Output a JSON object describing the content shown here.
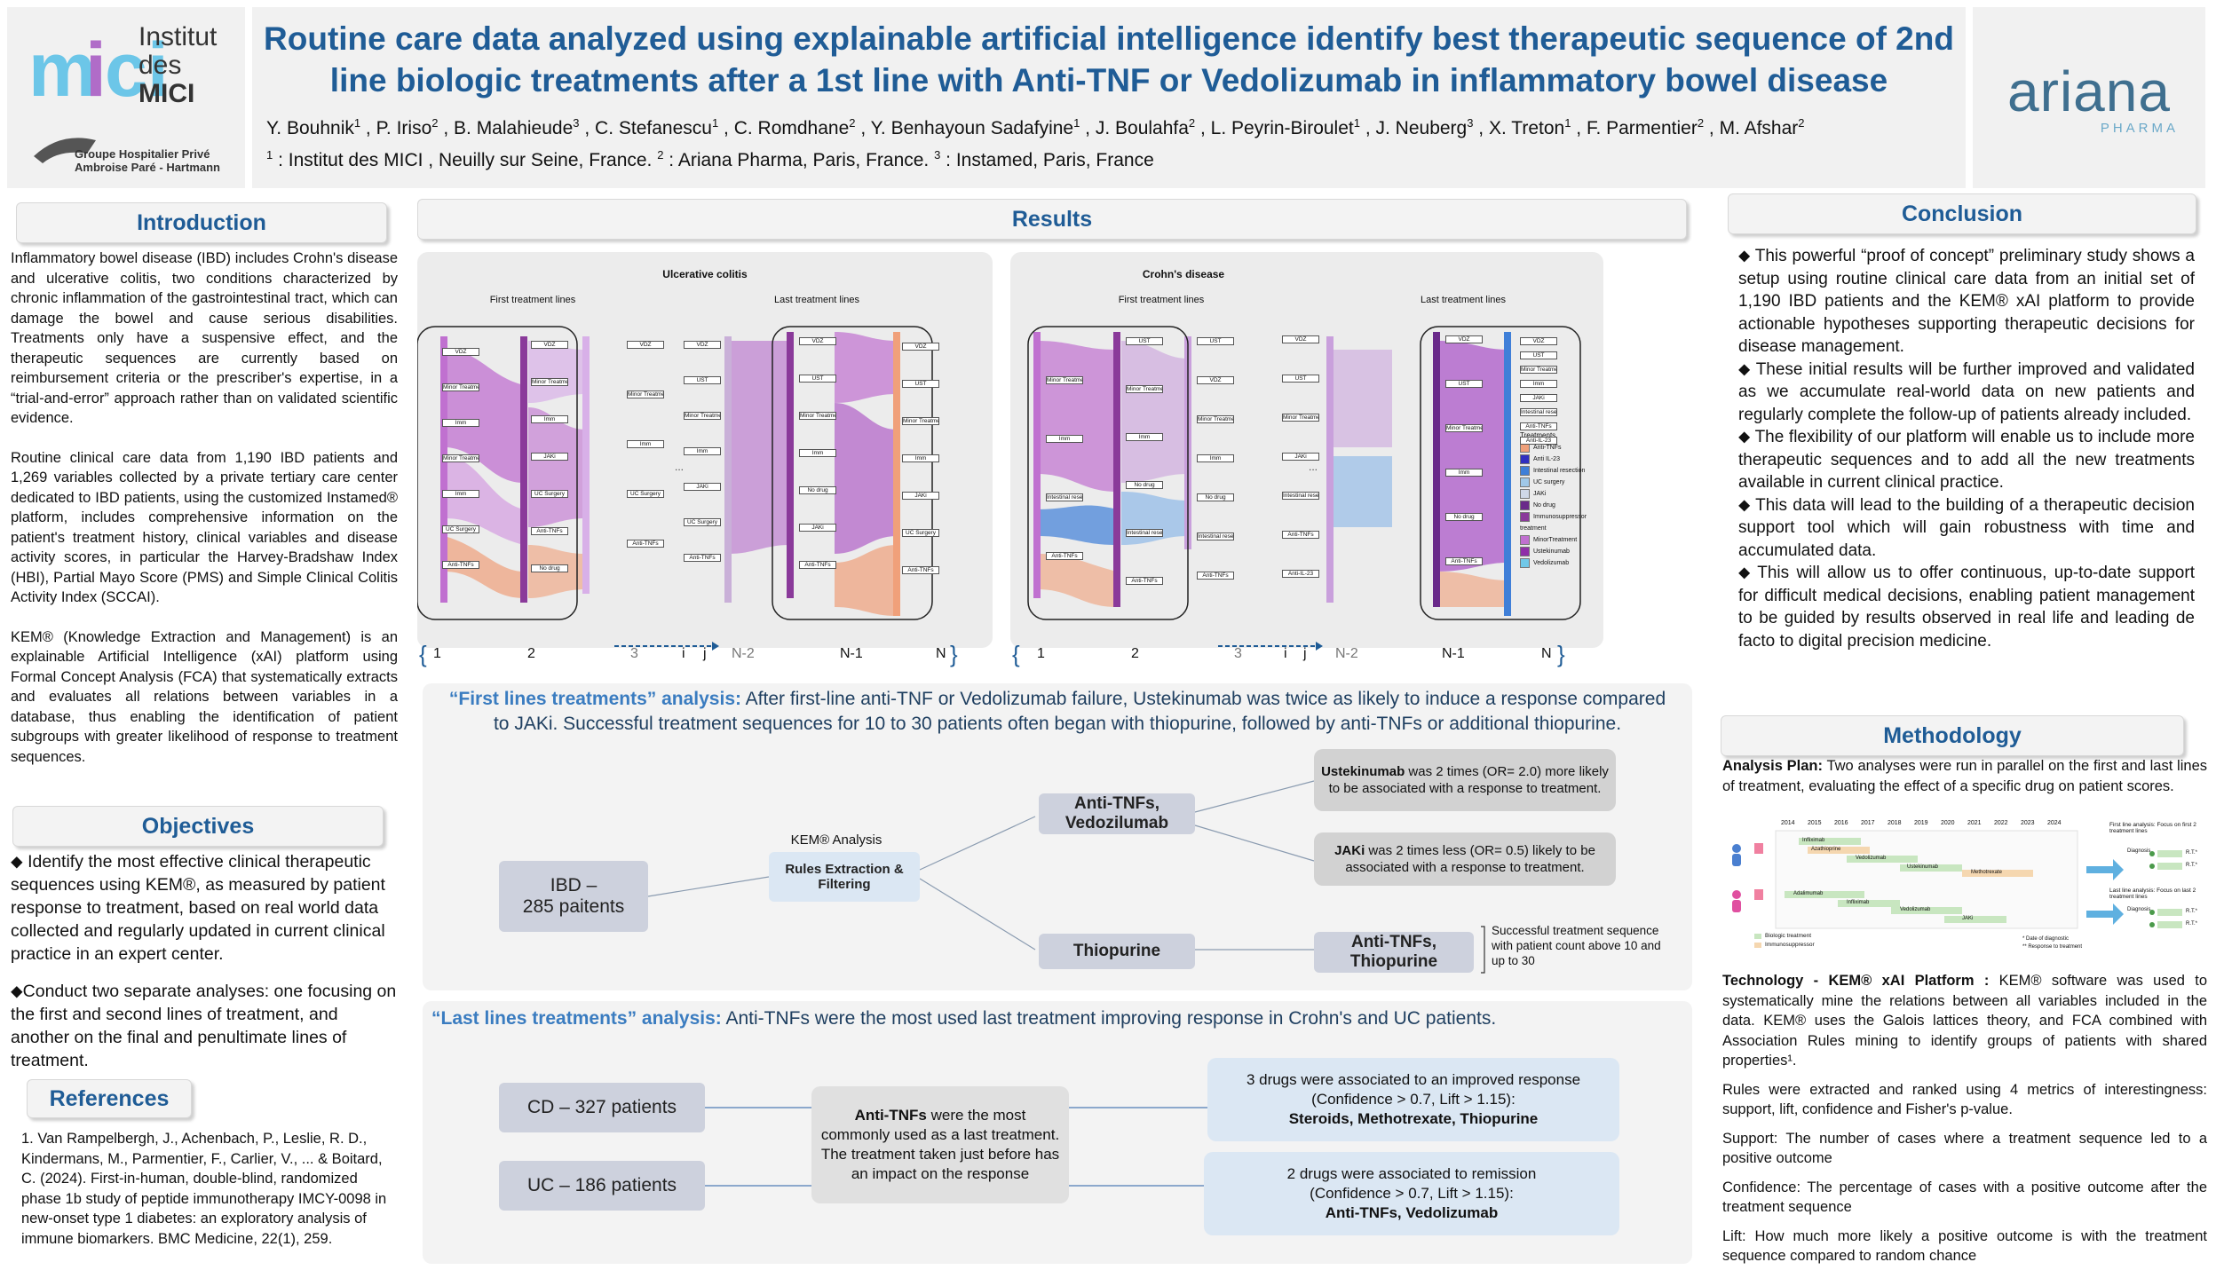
{
  "header": {
    "title_line1": "Routine care data analyzed using explainable artificial intelligence identify best therapeutic sequence of 2nd",
    "title_line2": "line biologic treatments after a 1st line with Anti-TNF or Vedolizumab in inflammatory bowel disease",
    "authors": [
      {
        "name": "Y. Bouhnik",
        "aff": "1"
      },
      {
        "name": "P. Iriso",
        "aff": "2"
      },
      {
        "name": "B. Malahieude",
        "aff": "3"
      },
      {
        "name": "C. Stefanescu",
        "aff": "1"
      },
      {
        "name": "C. Romdhane",
        "aff": "2"
      },
      {
        "name": "Y. Benhayoun Sadafyine",
        "aff": "1"
      },
      {
        "name": "J. Boulahfa",
        "aff": "2"
      },
      {
        "name": "L. Peyrin-Biroulet",
        "aff": "1"
      },
      {
        "name": "J. Neuberg",
        "aff": "3"
      },
      {
        "name": "X. Treton",
        "aff": "1"
      },
      {
        "name": "F. Parmentier",
        "aff": "2"
      },
      {
        "name": "M. Afshar",
        "aff": "2"
      }
    ],
    "affiliations": [
      {
        "num": "1",
        "text": ": Institut des MICI , Neuilly sur Seine, France."
      },
      {
        "num": "2",
        "text": ": Ariana Pharma, Paris, France."
      },
      {
        "num": "3",
        "text": ": Instamed, Paris, France"
      }
    ],
    "logo_left": {
      "line1": "Institut",
      "line2": "des",
      "line3": "MICI",
      "sub1": "Groupe Hospitalier Privé",
      "sub2": "Ambroise Paré - Hartmann"
    },
    "logo_right": {
      "name": "ariana",
      "sub": "PHARMA"
    }
  },
  "introduction": {
    "heading": "Introduction",
    "paragraphs": [
      "Inflammatory bowel disease (IBD) includes Crohn's disease and ulcerative colitis, two conditions characterized by chronic inflammation of the gastrointestinal tract, which can damage the bowel and cause serious disabilities. Treatments only have a suspensive effect, and the therapeutic sequences are currently based on reimbursement criteria or the prescriber's expertise, in a “trial-and-error” approach rather than on validated scientific evidence.",
      "Routine clinical care data from 1,190 IBD patients and 1,269 variables collected by a private tertiary care center dedicated to IBD patients, using the customized Instamed® platform, includes comprehensive information on the patient's treatment history, clinical variables and disease activity scores, in particular the Harvey-Bradshaw Index (HBI), Partial Mayo Score (PMS) and Simple Clinical Colitis Activity Index (SCCAI).",
      "KEM® (Knowledge Extraction and Management) is an explainable Artificial Intelligence (xAI) platform using Formal Concept Analysis (FCA) that systematically extracts and evaluates all relations between variables in a database, thus enabling the identification of patient subgroups with greater likelihood of response to treatment sequences."
    ]
  },
  "objectives": {
    "heading": "Objectives",
    "items": [
      "⬥ Identify the most effective clinical therapeutic sequences using KEM®, as measured by patient response to treatment, based on real world data collected and regularly updated in current clinical practice in an expert center.",
      "⬥Conduct two separate analyses: one focusing on the first and second lines of treatment, and another on the final and penultimate lines of treatment."
    ]
  },
  "references": {
    "heading": "References",
    "text": "1. Van Rampelbergh, J., Achenbach, P., Leslie, R. D., Kindermans, M., Parmentier, F., Carlier, V., ... & Boitard, C. (2024). First-in-human, double-blind, randomized phase 1b study of peptide immunotherapy IMCY-0098 in new-onset type 1 diabetes: an exploratory analysis of immune biomarkers. BMC Medicine, 22(1), 259."
  },
  "results": {
    "heading": "Results",
    "uc": {
      "title": "Ulcerative colitis",
      "first_label": "First treatment lines",
      "last_label": "Last treatment lines",
      "first_nodes": [
        "VDZ",
        "Minor Treatment",
        "Imm",
        "Minor Treatment",
        "Imm",
        "UC Surgery",
        "Anti-TNFs"
      ],
      "mid_nodes": [
        "VDZ",
        "Minor Treatment",
        "Imm",
        "JAKi",
        "UC Surgery",
        "Anti-TNFs",
        "No drug"
      ],
      "right_nodes": [
        "VDZ",
        "Minor Treatment",
        "Imm",
        "UC Surgery",
        "Anti-TNFs"
      ],
      "last_left_nodes": [
        "VDZ",
        "UST",
        "Minor Treatment",
        "Imm",
        "JAKi",
        "UC Surgery",
        "Anti-TNFs"
      ],
      "last_mid_nodes": [
        "VDZ",
        "UST",
        "Minor Treatment",
        "Imm",
        "No drug",
        "JAKi",
        "Anti-TNFs"
      ],
      "last_right_nodes": [
        "VDZ",
        "UST",
        "Minor Treatment",
        "Imm",
        "JAKi",
        "UC Surgery",
        "Anti-TNFs"
      ]
    },
    "cd": {
      "title": "Crohn's disease",
      "first_label": "First treatment lines",
      "last_label": "Last treatment lines",
      "first_nodes": [
        "Minor Treatment",
        "Imm",
        "Intestinal resection",
        "Anti-TNFs"
      ],
      "mid_nodes": [
        "UST",
        "Minor Treatment",
        "Imm",
        "No drug",
        "Intestinal resection",
        "Anti-TNFs"
      ],
      "right_nodes": [
        "UST",
        "VDZ",
        "Minor Treatment",
        "Imm",
        "No drug",
        "Intestinal resection",
        "Anti-TNFs"
      ],
      "last_left_nodes": [
        "VDZ",
        "UST",
        "Minor Treatment",
        "JAKi",
        "Intestinal resection",
        "Anti-TNFs",
        "Anti-IL-23"
      ],
      "last_mid_nodes": [
        "VDZ",
        "UST",
        "Minor Treatment",
        "Imm",
        "No drug",
        "Anti-TNFs"
      ],
      "last_right_nodes": [
        "VDZ",
        "UST",
        "Minor Treatment",
        "Imm",
        "JAKi",
        "Intestinal resection",
        "Anti-TNFs",
        "Anti-IL-23"
      ]
    },
    "axis_labels": [
      "1",
      "2",
      "3",
      "i",
      "j",
      "N-2",
      "N-1",
      "N"
    ],
    "dots": "...",
    "legend": {
      "title": "Treatments",
      "items": [
        {
          "label": "Anti-TNFs",
          "color": "#f0a07a"
        },
        {
          "label": "Anti IL-23",
          "color": "#2f2fc0"
        },
        {
          "label": "Intestinal resection",
          "color": "#3f7fd8"
        },
        {
          "label": "UC surgery",
          "color": "#a0c8e8"
        },
        {
          "label": "JAKi",
          "color": "#cfd8e8"
        },
        {
          "label": "No drug",
          "color": "#6a2a8a"
        },
        {
          "label": "Immunosuppressor treatment",
          "color": "#8a3a9a"
        },
        {
          "label": "MinorTreatment",
          "color": "#c070d0"
        },
        {
          "label": "Ustekinumab",
          "color": "#8f2fa8"
        },
        {
          "label": "Vedolizumab",
          "color": "#70c8e8"
        }
      ]
    },
    "first_lines": {
      "heading": "“First lines treatments” analysis:",
      "text": " After first-line anti-TNF or Vedolizumab failure, Ustekinumab was twice as likely to induce a response compared",
      "text2": "to JAKi. Successful treatment sequences for 10 to 30 patients often began with thiopurine, followed by anti-TNFs or additional thiopurine.",
      "ibd_box": "IBD –\n285 paitents",
      "kem_label": "KEM® Analysis",
      "kem_box": "Rules Extraction &\nFiltering",
      "anti_tnf_box": "Anti-TNFs,\nVedozilumab",
      "thiopurine_box": "Thiopurine",
      "anti_tnf_thio_box": "Anti-TNFs,\nThiopurine",
      "ust_bold": "Ustekinumab",
      "ust_text": " was 2 times (OR= 2.0) more likely to be associated with a response to treatment.",
      "jaki_bold": "JAKi",
      "jaki_text": " was 2 times less (OR= 0.5) likely to be associated with a response to treatment.",
      "success_note": "Successful treatment sequence with patient count above 10 and up to 30"
    },
    "last_lines": {
      "heading": "“Last lines treatments” analysis:",
      "text": " Anti-TNFs were the most used last treatment improving response in Crohn's and UC patients.",
      "cd_box": "CD – 327 patients",
      "uc_box": "UC – 186 patients",
      "center_bold": "Anti-TNFs",
      "center_text": " were the most commonly used as a last treatment. The treatment taken just before has an impact on the response",
      "box1_line1": "3 drugs were associated to an improved response",
      "box1_line2": "(Confidence > 0.7, Lift > 1.15):",
      "box1_line3": "Steroids, Methotrexate, Thiopurine",
      "box2_line1": "2 drugs were associated to remission",
      "box2_line2": "(Confidence > 0.7, Lift > 1.15):",
      "box2_line3": "Anti-TNFs, Vedolizumab"
    }
  },
  "conclusion": {
    "heading": "Conclusion",
    "items": [
      "⬥ This powerful “proof of concept” preliminary study shows a setup using routine clinical care data from an initial set of 1,190 IBD patients and the KEM® xAI platform to provide actionable hypotheses supporting therapeutic decisions for disease management.",
      "⬥ These initial results will be further improved and validated as we accumulate real-world data on new patients and regularly complete the follow-up of patients already included.",
      "⬥ The flexibility of our platform will enable us to include more therapeutic sequences and to add all the new treatments available in current clinical practice.",
      "⬥ This data will lead to the building of a therapeutic decision support tool which will gain robustness with time and accumulated data.",
      "⬥ This will allow us to offer continuous, up-to-date support for difficult medical decisions, enabling patient management to be guided by results observed in real life and leading de facto to digital precision medicine."
    ]
  },
  "methodology": {
    "heading": "Methodology",
    "analysis_plan_bold": "Analysis Plan:",
    "analysis_plan": " Two analyses were run in parallel on the first and last lines of treatment, evaluating the effect of a specific drug on patient scores.",
    "timeline_years": [
      "2014",
      "2015",
      "2016",
      "2017",
      "2018",
      "2019",
      "2020",
      "2021",
      "2022",
      "2023",
      "2024"
    ],
    "timeline_bars_p1": [
      "Infliximab",
      "Azathioprine",
      "Vedolizumab",
      "Ustekinumab",
      "Methotrexate"
    ],
    "timeline_bars_p2": [
      "Adalimumab",
      "Infliximab",
      "Vedolizumab",
      "JAKi"
    ],
    "timeline_legend": [
      "Biologic treatment",
      "Immunosuppressor"
    ],
    "timeline_notes": [
      "* Date of diagnostic",
      "** Response to treatment"
    ],
    "right_diag_first": "First line analysis: Focus on first 2 treatment lines",
    "right_diag_last": "Last line analysis: Focus on last 2 treatment lines",
    "diag_node": "Diagnosis",
    "diag_resp": "R.T.*",
    "technology_bold": "Technology - KEM® xAI Platform :",
    "technology": " KEM® software was used to systematically mine the relations between all variables included in the data. KEM® uses the Galois lattices theory, and FCA combined with Association Rules mining to identify groups of patients with shared properties¹.",
    "rules": "Rules were extracted and ranked using 4 metrics of interestingness: support, lift, confidence and Fisher's p-value.",
    "support": "Support: The number of cases where a treatment sequence led to a positive outcome",
    "confidence": "Confidence: The percentage of cases with a positive outcome after the treatment sequence",
    "lift": "Lift: How much more likely a positive outcome is with the treatment sequence compared to random chance"
  },
  "colors": {
    "accent": "#1f5c96",
    "analysis_heading": "#3a7cc0",
    "purple": "#a84fc8",
    "salmon": "#f0a07a",
    "blue": "#3f7fd8"
  }
}
